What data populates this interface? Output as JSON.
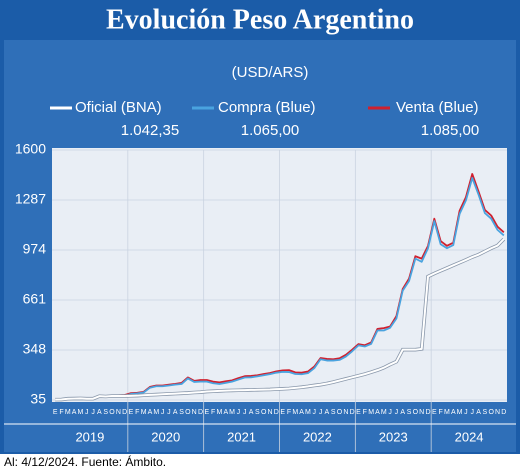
{
  "chart_data": {
    "type": "line",
    "title": "Evolución Peso Argentino",
    "subtitle": "(USD/ARS)",
    "footer": "Al: 4/12/2024. Fuente: Ámbito.",
    "categories": [
      "E",
      "F",
      "M",
      "A",
      "M",
      "J",
      "J",
      "A",
      "S",
      "O",
      "N",
      "D",
      "E",
      "F",
      "M",
      "A",
      "M",
      "J",
      "J",
      "A",
      "S",
      "O",
      "N",
      "D",
      "E",
      "F",
      "M",
      "A",
      "M",
      "J",
      "J",
      "A",
      "S",
      "O",
      "N",
      "D",
      "E",
      "F",
      "M",
      "A",
      "M",
      "J",
      "J",
      "A",
      "S",
      "O",
      "N",
      "D",
      "E",
      "F",
      "M",
      "A",
      "M",
      "J",
      "J",
      "A",
      "S",
      "O",
      "N",
      "D",
      "E",
      "F",
      "M",
      "A",
      "M",
      "J",
      "J",
      "A",
      "S",
      "O",
      "N",
      "D"
    ],
    "years": [
      "2019",
      "2020",
      "2021",
      "2022",
      "2023",
      "2024"
    ],
    "ylim": [
      35,
      1600
    ],
    "yticks": [
      35,
      348,
      661,
      974,
      1287,
      1600
    ],
    "series": [
      {
        "name": "Venta (Blue)",
        "color": "#d0202e",
        "annotation": "1.085,00",
        "values": [
          39,
          40,
          44,
          45,
          47,
          45,
          45,
          62,
          60,
          63,
          64,
          66,
          78,
          80,
          86,
          117,
          126,
          126,
          131,
          136,
          142,
          176,
          155,
          160,
          160,
          150,
          145,
          152,
          158,
          172,
          184,
          186,
          190,
          198,
          204,
          214,
          220,
          222,
          208,
          206,
          213,
          244,
          298,
          292,
          290,
          296,
          318,
          350,
          385,
          378,
          395,
          480,
          485,
          495,
          560,
          730,
          795,
          935,
          920,
          1000,
          1170,
          1030,
          1000,
          1020,
          1220,
          1305,
          1450,
          1340,
          1225,
          1190,
          1120,
          1085
        ]
      },
      {
        "name": "Compra (Blue)",
        "color": "#4aa3df",
        "annotation": "1.065,00",
        "values": [
          37,
          38,
          41,
          42,
          44,
          42,
          42,
          58,
          56,
          58,
          59,
          60,
          73,
          76,
          82,
          112,
          121,
          121,
          126,
          131,
          135,
          170,
          148,
          150,
          150,
          140,
          135,
          142,
          150,
          163,
          176,
          177,
          183,
          190,
          197,
          206,
          211,
          210,
          198,
          196,
          203,
          234,
          290,
          282,
          282,
          286,
          307,
          340,
          377,
          370,
          386,
          470,
          470,
          487,
          545,
          720,
          780,
          920,
          900,
          985,
          1155,
          1010,
          985,
          1005,
          1200,
          1285,
          1425,
          1320,
          1205,
          1170,
          1100,
          1065
        ]
      },
      {
        "name": "Oficial (BNA)",
        "color": "#ffffff",
        "annotation": "1.042,35",
        "values": [
          37.4,
          38,
          43,
          44,
          45,
          43,
          43,
          59,
          57,
          60,
          60,
          60,
          61,
          62,
          65,
          67,
          69,
          71,
          73,
          75,
          77,
          79,
          82,
          84,
          88,
          90,
          92,
          94,
          95,
          96,
          97,
          98,
          99,
          100,
          101,
          103,
          105,
          107,
          111,
          115,
          120,
          126,
          131,
          138,
          147,
          157,
          167,
          177,
          187,
          197,
          209,
          222,
          237,
          257,
          275,
          350,
          350,
          350,
          355,
          808,
          827,
          844,
          861,
          878,
          895,
          912,
          930,
          945,
          965,
          985,
          1002,
          1042.35
        ]
      }
    ]
  }
}
